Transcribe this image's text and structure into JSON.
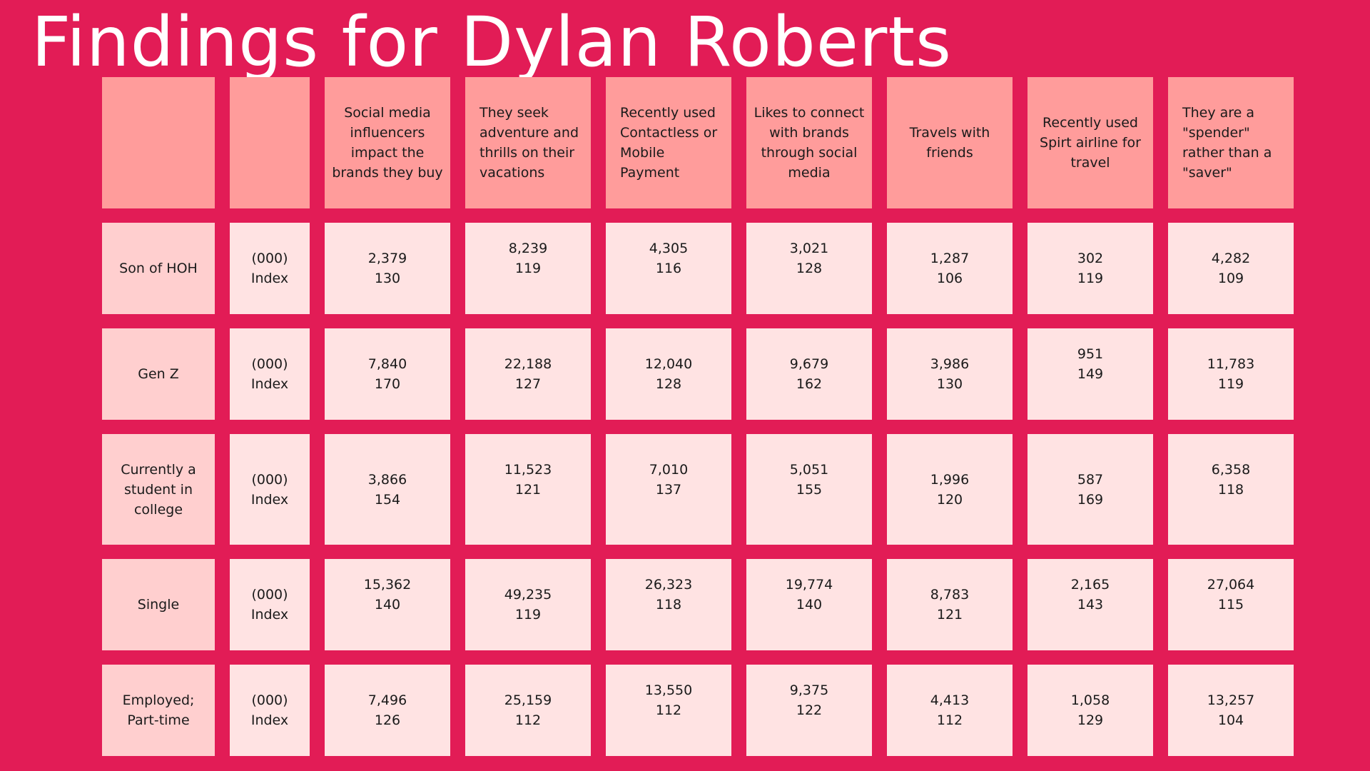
{
  "title": "Findings for Dylan Roberts",
  "columns": [
    "Social media influencers impact the brands they buy",
    "They seek adventure and thrills on their vacations",
    "Recently used Contactless or Mobile Payment",
    "Likes to connect with brands through social media",
    "Travels with friends",
    "Recently used Spirt airline for travel",
    "They are a \"spender\" rather than a \"saver\""
  ],
  "metric_label_thousands": "(000)",
  "metric_label_index": "Index",
  "rows": [
    {
      "label": "Son of HOH",
      "values": [
        [
          "2,379",
          "130"
        ],
        [
          "8,239",
          "119"
        ],
        [
          "4,305",
          "116"
        ],
        [
          "3,021",
          "128"
        ],
        [
          "1,287",
          "106"
        ],
        [
          "302",
          "119"
        ],
        [
          "4,282",
          "109"
        ]
      ]
    },
    {
      "label": "Gen Z",
      "values": [
        [
          "7,840",
          "170"
        ],
        [
          "22,188",
          "127"
        ],
        [
          "12,040",
          "128"
        ],
        [
          "9,679",
          "162"
        ],
        [
          "3,986",
          "130"
        ],
        [
          "951",
          "149"
        ],
        [
          "11,783",
          "119"
        ]
      ]
    },
    {
      "label": "Currently a student in college",
      "values": [
        [
          "3,866",
          "154"
        ],
        [
          "11,523",
          "121"
        ],
        [
          "7,010",
          "137"
        ],
        [
          "5,051",
          "155"
        ],
        [
          "1,996",
          "120"
        ],
        [
          "587",
          "169"
        ],
        [
          "6,358",
          "118"
        ]
      ]
    },
    {
      "label": "Single",
      "values": [
        [
          "15,362",
          "140"
        ],
        [
          "49,235",
          "119"
        ],
        [
          "26,323",
          "118"
        ],
        [
          "19,774",
          "140"
        ],
        [
          "8,783",
          "121"
        ],
        [
          "2,165",
          "143"
        ],
        [
          "27,064",
          "115"
        ]
      ]
    },
    {
      "label": "Employed; Part-time",
      "values": [
        [
          "7,496",
          "126"
        ],
        [
          "25,159",
          "112"
        ],
        [
          "13,550",
          "112"
        ],
        [
          "9,375",
          "122"
        ],
        [
          "4,413",
          "112"
        ],
        [
          "1,058",
          "129"
        ],
        [
          "13,257",
          "104"
        ]
      ]
    }
  ],
  "colors": {
    "background": "#e21c56",
    "header_cell": "#ff9c9b",
    "row_label_cell": "#ffcfcf",
    "data_cell": "#ffe3e3",
    "title_text": "#ffffff"
  }
}
